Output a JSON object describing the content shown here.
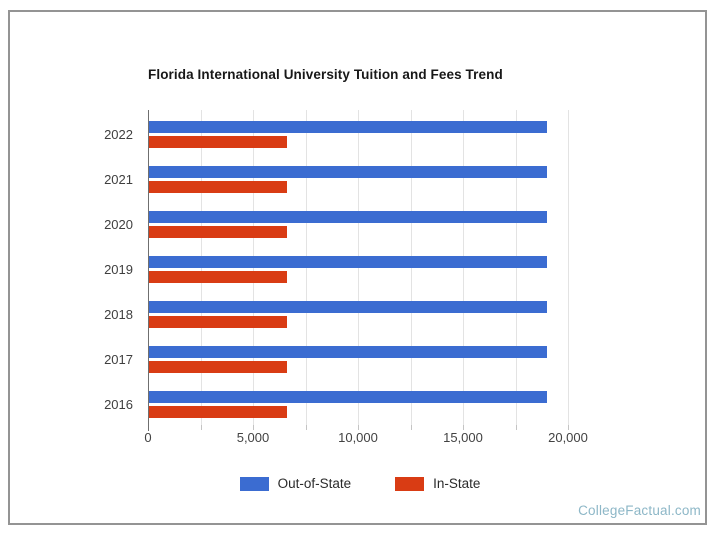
{
  "page": {
    "background": "#ffffff",
    "frame_border_color": "#949494"
  },
  "chart_data": {
    "type": "bar",
    "orientation": "horizontal",
    "title": "Florida International University Tuition and Fees Trend",
    "categories": [
      "2022",
      "2021",
      "2020",
      "2019",
      "2018",
      "2017",
      "2016"
    ],
    "series": [
      {
        "name": "Out-of-State",
        "color": "#3b6cd1",
        "values": [
          18963,
          18963,
          18963,
          18963,
          18963,
          18963,
          18963
        ]
      },
      {
        "name": "In-State",
        "color": "#d93c14",
        "values": [
          6565,
          6565,
          6565,
          6565,
          6565,
          6565,
          6565
        ]
      }
    ],
    "xlim": [
      0,
      20000
    ],
    "xticks": [
      0,
      5000,
      10000,
      15000,
      20000
    ],
    "xtick_labels": [
      "0",
      "5,000",
      "10,000",
      "15,000",
      "20,000"
    ],
    "gridline_interval": 2500,
    "grid": true,
    "legend_position": "bottom",
    "axis_line_color": "#6f6f6f",
    "gridline_color": "#e3e3e3"
  },
  "footer": {
    "link_text": "CollegeFactual.com",
    "color": "#8db7c7"
  }
}
